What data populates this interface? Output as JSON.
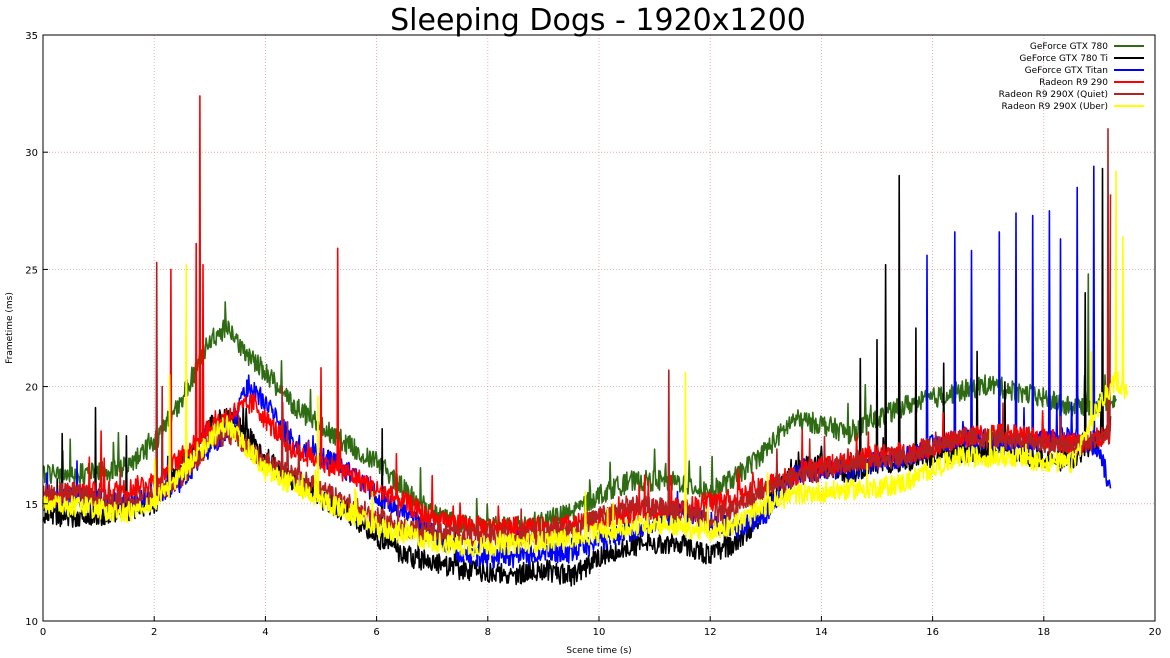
{
  "chart_data": {
    "type": "line",
    "title": "Sleeping Dogs - 1920x1200",
    "xlabel": "Scene time (s)",
    "ylabel": "Frametime (ms)",
    "xlim": [
      0,
      20
    ],
    "ylim": [
      10,
      35
    ],
    "x_ticks": [
      "0",
      "2",
      "4",
      "6",
      "8",
      "10",
      "12",
      "14",
      "16",
      "18",
      "20"
    ],
    "y_ticks": [
      "10",
      "15",
      "20",
      "25",
      "30",
      "35"
    ],
    "grid": true,
    "legend_position": "top-right",
    "series": [
      {
        "name": "GeForce GTX 780",
        "color": "#2e6b12",
        "baseline": [
          [
            0,
            16.3
          ],
          [
            0.5,
            16.3
          ],
          [
            1.0,
            16.3
          ],
          [
            1.5,
            16.6
          ],
          [
            2.0,
            17.6
          ],
          [
            2.5,
            19.5
          ],
          [
            3.0,
            22.0
          ],
          [
            3.3,
            22.5
          ],
          [
            3.6,
            21.6
          ],
          [
            4.0,
            20.6
          ],
          [
            4.5,
            19.2
          ],
          [
            5.0,
            18.3
          ],
          [
            5.5,
            17.5
          ],
          [
            6.0,
            16.8
          ],
          [
            6.5,
            15.6
          ],
          [
            7.0,
            14.6
          ],
          [
            7.5,
            14.1
          ],
          [
            8.0,
            14.0
          ],
          [
            8.5,
            14.1
          ],
          [
            9.0,
            14.3
          ],
          [
            9.5,
            14.6
          ],
          [
            10.0,
            15.4
          ],
          [
            10.5,
            15.9
          ],
          [
            11.0,
            16.0
          ],
          [
            11.5,
            15.9
          ],
          [
            12.0,
            15.5
          ],
          [
            12.5,
            16.2
          ],
          [
            13.0,
            17.3
          ],
          [
            13.5,
            18.6
          ],
          [
            14.0,
            18.4
          ],
          [
            14.5,
            18.0
          ],
          [
            15.0,
            18.6
          ],
          [
            15.5,
            19.2
          ],
          [
            16.0,
            19.5
          ],
          [
            16.5,
            19.8
          ],
          [
            17.0,
            20.1
          ],
          [
            17.5,
            19.8
          ],
          [
            18.0,
            19.5
          ],
          [
            18.5,
            19.1
          ],
          [
            19.0,
            19.3
          ],
          [
            19.3,
            19.5
          ]
        ],
        "spikes": [
          [
            1.9,
            18.0
          ],
          [
            18.8,
            24.8
          ],
          [
            19.1,
            20.5
          ]
        ]
      },
      {
        "name": "GeForce GTX 780 Ti",
        "color": "#000000",
        "baseline": [
          [
            0,
            14.6
          ],
          [
            0.5,
            14.4
          ],
          [
            1.0,
            14.5
          ],
          [
            1.5,
            14.7
          ],
          [
            2.0,
            15.0
          ],
          [
            2.5,
            16.5
          ],
          [
            3.0,
            18.4
          ],
          [
            3.3,
            18.7
          ],
          [
            3.6,
            18.2
          ],
          [
            4.0,
            17.0
          ],
          [
            4.5,
            16.0
          ],
          [
            5.0,
            15.2
          ],
          [
            5.5,
            14.6
          ],
          [
            6.0,
            13.6
          ],
          [
            6.5,
            12.8
          ],
          [
            7.0,
            12.5
          ],
          [
            7.5,
            12.2
          ],
          [
            8.0,
            12.1
          ],
          [
            8.5,
            12.0
          ],
          [
            9.0,
            12.2
          ],
          [
            9.5,
            11.9
          ],
          [
            10.0,
            12.7
          ],
          [
            10.5,
            13.2
          ],
          [
            11.0,
            13.3
          ],
          [
            11.5,
            13.3
          ],
          [
            12.0,
            12.8
          ],
          [
            12.5,
            13.4
          ],
          [
            13.0,
            14.7
          ],
          [
            13.5,
            16.5
          ],
          [
            14.0,
            16.7
          ],
          [
            14.5,
            16.3
          ],
          [
            15.0,
            16.7
          ],
          [
            15.5,
            16.8
          ],
          [
            16.0,
            17.0
          ],
          [
            16.5,
            17.2
          ],
          [
            17.0,
            17.3
          ],
          [
            17.5,
            17.2
          ],
          [
            18.0,
            16.9
          ],
          [
            18.5,
            16.8
          ],
          [
            19.0,
            17.8
          ],
          [
            19.2,
            18.3
          ]
        ],
        "spikes": [
          [
            0.35,
            18.0
          ],
          [
            0.95,
            19.1
          ],
          [
            1.5,
            17.9
          ],
          [
            3.6,
            19.2
          ],
          [
            6.1,
            18.2
          ],
          [
            14.7,
            21.2
          ],
          [
            15.0,
            22.0
          ],
          [
            15.15,
            25.2
          ],
          [
            15.4,
            29.0
          ],
          [
            15.7,
            22.5
          ],
          [
            16.2,
            21.0
          ],
          [
            16.8,
            21.5
          ],
          [
            17.3,
            20.2
          ],
          [
            18.75,
            24.0
          ],
          [
            19.05,
            29.3
          ]
        ]
      },
      {
        "name": "GeForce GTX Titan",
        "color": "#0000ff",
        "baseline": [
          [
            0,
            15.0
          ],
          [
            0.5,
            15.3
          ],
          [
            1.0,
            15.2
          ],
          [
            1.5,
            15.1
          ],
          [
            2.0,
            15.2
          ],
          [
            2.5,
            16.0
          ],
          [
            3.0,
            17.4
          ],
          [
            3.4,
            18.3
          ],
          [
            3.7,
            20.1
          ],
          [
            4.0,
            19.3
          ],
          [
            4.5,
            17.6
          ],
          [
            5.0,
            17.0
          ],
          [
            5.5,
            16.4
          ],
          [
            6.0,
            15.4
          ],
          [
            6.5,
            14.6
          ],
          [
            7.0,
            13.8
          ],
          [
            7.5,
            12.9
          ],
          [
            8.0,
            12.7
          ],
          [
            8.5,
            12.7
          ],
          [
            9.0,
            12.9
          ],
          [
            9.5,
            12.9
          ],
          [
            10.0,
            13.4
          ],
          [
            10.5,
            13.8
          ],
          [
            11.0,
            14.2
          ],
          [
            11.5,
            14.7
          ],
          [
            12.0,
            14.2
          ],
          [
            12.5,
            13.9
          ],
          [
            13.0,
            14.6
          ],
          [
            13.5,
            16.2
          ],
          [
            14.0,
            16.5
          ],
          [
            14.5,
            16.4
          ],
          [
            15.0,
            16.8
          ],
          [
            15.5,
            17.0
          ],
          [
            16.0,
            17.5
          ],
          [
            16.5,
            17.8
          ],
          [
            17.0,
            17.7
          ],
          [
            17.5,
            17.5
          ],
          [
            18.0,
            17.7
          ],
          [
            18.5,
            17.9
          ],
          [
            19.0,
            17.4
          ],
          [
            19.2,
            15.5
          ]
        ],
        "spikes": [
          [
            15.9,
            25.6
          ],
          [
            16.4,
            26.6
          ],
          [
            16.7,
            25.8
          ],
          [
            17.2,
            26.6
          ],
          [
            17.5,
            27.4
          ],
          [
            17.8,
            27.3
          ],
          [
            18.1,
            27.5
          ],
          [
            18.3,
            26.3
          ],
          [
            18.6,
            28.5
          ],
          [
            18.9,
            29.4
          ]
        ]
      },
      {
        "name": "Radeon R9 290",
        "color": "#ff0000",
        "baseline": [
          [
            0,
            15.2
          ],
          [
            0.5,
            15.5
          ],
          [
            1.0,
            15.5
          ],
          [
            1.5,
            15.6
          ],
          [
            2.0,
            16.0
          ],
          [
            2.5,
            17.0
          ],
          [
            3.0,
            18.3
          ],
          [
            3.5,
            19.0
          ],
          [
            3.8,
            19.3
          ],
          [
            4.0,
            18.6
          ],
          [
            4.5,
            17.3
          ],
          [
            5.0,
            16.8
          ],
          [
            5.5,
            16.3
          ],
          [
            6.0,
            15.6
          ],
          [
            6.5,
            15.1
          ],
          [
            7.0,
            14.3
          ],
          [
            7.5,
            14.1
          ],
          [
            8.0,
            14.0
          ],
          [
            8.5,
            14.0
          ],
          [
            9.0,
            14.0
          ],
          [
            9.5,
            14.1
          ],
          [
            10.0,
            14.3
          ],
          [
            10.5,
            14.6
          ],
          [
            11.0,
            14.8
          ],
          [
            11.5,
            14.8
          ],
          [
            12.0,
            15.1
          ],
          [
            12.5,
            15.2
          ],
          [
            13.0,
            15.8
          ],
          [
            13.5,
            16.2
          ],
          [
            14.0,
            16.6
          ],
          [
            14.5,
            16.8
          ],
          [
            15.0,
            17.1
          ],
          [
            15.5,
            17.2
          ],
          [
            16.0,
            17.4
          ],
          [
            16.5,
            17.8
          ],
          [
            17.0,
            18.0
          ],
          [
            17.5,
            18.0
          ],
          [
            18.0,
            17.8
          ],
          [
            18.5,
            17.6
          ],
          [
            19.0,
            17.8
          ],
          [
            19.2,
            18.0
          ]
        ],
        "spikes": [
          [
            1.05,
            18.1
          ],
          [
            2.3,
            25.0
          ],
          [
            2.75,
            26.1
          ],
          [
            2.82,
            32.4
          ],
          [
            2.88,
            25.2
          ],
          [
            5.3,
            25.9
          ],
          [
            5.0,
            20.8
          ],
          [
            7.0,
            16.2
          ],
          [
            11.3,
            16.2
          ],
          [
            12.5,
            16.5
          ]
        ]
      },
      {
        "name": "Radeon R9 290X (Quiet)",
        "color": "#b22222",
        "baseline": [
          [
            0,
            15.4
          ],
          [
            0.5,
            15.5
          ],
          [
            1.0,
            15.2
          ],
          [
            1.5,
            15.0
          ],
          [
            2.0,
            15.4
          ],
          [
            2.5,
            16.2
          ],
          [
            3.0,
            17.6
          ],
          [
            3.3,
            18.0
          ],
          [
            3.6,
            17.6
          ],
          [
            4.0,
            16.8
          ],
          [
            4.5,
            16.2
          ],
          [
            5.0,
            15.6
          ],
          [
            5.5,
            15.0
          ],
          [
            6.0,
            14.4
          ],
          [
            6.5,
            14.0
          ],
          [
            7.0,
            13.8
          ],
          [
            7.5,
            13.7
          ],
          [
            8.0,
            13.6
          ],
          [
            8.5,
            13.6
          ],
          [
            9.0,
            13.7
          ],
          [
            9.5,
            13.9
          ],
          [
            10.0,
            14.4
          ],
          [
            10.5,
            14.9
          ],
          [
            11.0,
            14.9
          ],
          [
            11.5,
            14.7
          ],
          [
            12.0,
            14.4
          ],
          [
            12.5,
            14.8
          ],
          [
            13.0,
            15.6
          ],
          [
            13.5,
            16.1
          ],
          [
            14.0,
            16.4
          ],
          [
            14.5,
            16.8
          ],
          [
            15.0,
            16.9
          ],
          [
            15.5,
            17.0
          ],
          [
            16.0,
            17.5
          ],
          [
            16.5,
            17.8
          ],
          [
            17.0,
            17.8
          ],
          [
            17.5,
            17.7
          ],
          [
            18.0,
            17.6
          ],
          [
            18.5,
            17.4
          ],
          [
            19.0,
            17.8
          ],
          [
            19.2,
            18.0
          ]
        ],
        "spikes": [
          [
            2.05,
            25.3
          ],
          [
            2.15,
            20.0
          ],
          [
            4.3,
            20.0
          ],
          [
            4.4,
            18.5
          ],
          [
            11.25,
            20.7
          ],
          [
            19.15,
            31.0
          ],
          [
            19.2,
            28.2
          ]
        ]
      },
      {
        "name": "Radeon R9 290X (Uber)",
        "color": "#ffff00",
        "baseline": [
          [
            0,
            14.9
          ],
          [
            0.5,
            14.9
          ],
          [
            1.0,
            14.8
          ],
          [
            1.5,
            14.6
          ],
          [
            2.0,
            15.1
          ],
          [
            2.5,
            16.2
          ],
          [
            3.0,
            17.8
          ],
          [
            3.3,
            18.4
          ],
          [
            3.6,
            17.6
          ],
          [
            4.0,
            16.4
          ],
          [
            4.5,
            15.8
          ],
          [
            5.0,
            15.2
          ],
          [
            5.5,
            14.6
          ],
          [
            6.0,
            14.0
          ],
          [
            6.5,
            13.7
          ],
          [
            7.0,
            13.4
          ],
          [
            7.5,
            13.2
          ],
          [
            8.0,
            13.2
          ],
          [
            8.5,
            13.3
          ],
          [
            9.0,
            13.4
          ],
          [
            9.5,
            13.5
          ],
          [
            10.0,
            13.8
          ],
          [
            10.5,
            14.0
          ],
          [
            11.0,
            14.2
          ],
          [
            11.5,
            14.0
          ],
          [
            12.0,
            13.8
          ],
          [
            12.5,
            14.2
          ],
          [
            13.0,
            14.9
          ],
          [
            13.5,
            15.4
          ],
          [
            14.0,
            15.5
          ],
          [
            14.5,
            15.6
          ],
          [
            15.0,
            15.7
          ],
          [
            15.5,
            15.9
          ],
          [
            16.0,
            16.5
          ],
          [
            16.5,
            17.0
          ],
          [
            17.0,
            17.0
          ],
          [
            17.5,
            17.0
          ],
          [
            18.0,
            16.8
          ],
          [
            18.5,
            16.7
          ],
          [
            19.0,
            19.2
          ],
          [
            19.3,
            20.3
          ],
          [
            19.5,
            19.8
          ]
        ],
        "spikes": [
          [
            2.28,
            20.5
          ],
          [
            2.58,
            25.2
          ],
          [
            4.95,
            19.6
          ],
          [
            11.55,
            20.6
          ],
          [
            19.3,
            29.2
          ],
          [
            19.42,
            26.4
          ],
          [
            18.85,
            21.5
          ]
        ]
      }
    ]
  }
}
